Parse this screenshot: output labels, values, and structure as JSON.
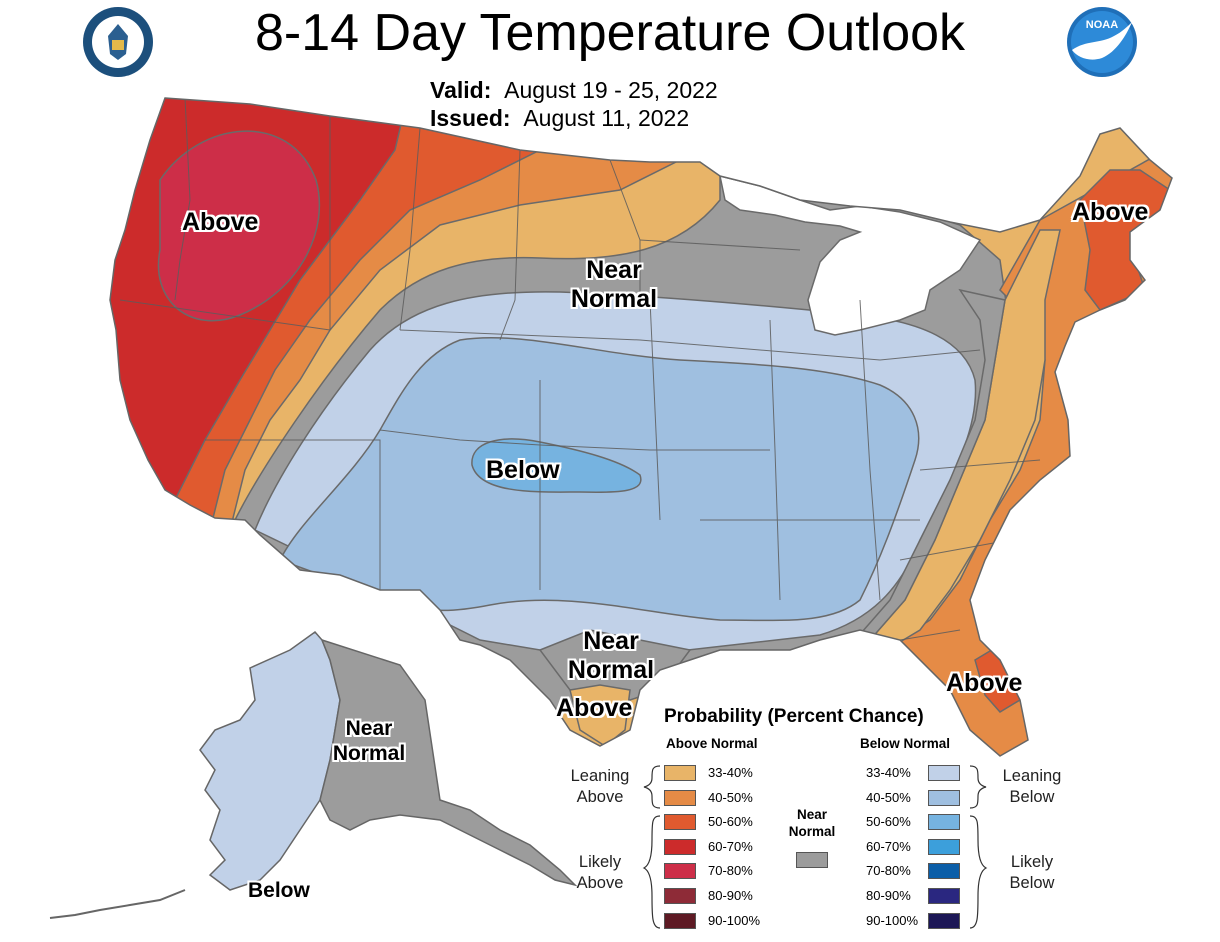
{
  "header": {
    "title": "8-14 Day Temperature Outlook",
    "valid_label": "Valid:",
    "valid_value": "August 19 - 25, 2022",
    "issued_label": "Issued:",
    "issued_value": "August 11, 2022"
  },
  "logos": {
    "left_seal_name": "department-of-commerce-seal",
    "right_logo_name": "noaa-logo",
    "noaa_text": "NOAA"
  },
  "map_labels": {
    "northwest": "Above",
    "northeast": "Above",
    "north_central_line1": "Near",
    "north_central_line2": "Normal",
    "central": "Below",
    "south_texas_line1": "Near",
    "south_texas_line2": "Normal",
    "south_texas_tip": "Above",
    "florida": "Above",
    "alaska_line1": "Near",
    "alaska_line2": "Normal",
    "alaska_southwest": "Below"
  },
  "colors": {
    "above_33_40": "#e8b468",
    "above_40_50": "#e58b46",
    "above_50_60": "#e05a2f",
    "above_60_70": "#cc2b2b",
    "above_70_80": "#cd2e48",
    "above_80_90": "#8e2b37",
    "above_90_100": "#5e1a24",
    "near_normal": "#9c9c9c",
    "below_33_40": "#c1d1e8",
    "below_40_50": "#9fbfe0",
    "below_50_60": "#76b3e0",
    "below_60_70": "#3c9fdb",
    "below_70_80": "#0b5ea8",
    "below_80_90": "#2a2780",
    "below_90_100": "#1c1756",
    "boundary": "#6a6a6a",
    "great_lakes": "#ffffff"
  },
  "legend": {
    "title": "Probability (Percent Chance)",
    "above_header": "Above Normal",
    "below_header": "Below Normal",
    "near_line1": "Near",
    "near_line2": "Normal",
    "leaning_above": [
      "Leaning",
      "Above"
    ],
    "likely_above": [
      "Likely",
      "Above"
    ],
    "leaning_below": [
      "Leaning",
      "Below"
    ],
    "likely_below": [
      "Likely",
      "Below"
    ],
    "above_rows": [
      {
        "label": "33-40%",
        "color": "#e8b468"
      },
      {
        "label": "40-50%",
        "color": "#e58b46"
      },
      {
        "label": "50-60%",
        "color": "#e05a2f"
      },
      {
        "label": "60-70%",
        "color": "#cc2b2b"
      },
      {
        "label": "70-80%",
        "color": "#cd2e48"
      },
      {
        "label": "80-90%",
        "color": "#8e2b37"
      },
      {
        "label": "90-100%",
        "color": "#5e1a24"
      }
    ],
    "below_rows": [
      {
        "label": "33-40%",
        "color": "#c1d1e8"
      },
      {
        "label": "40-50%",
        "color": "#9fbfe0"
      },
      {
        "label": "50-60%",
        "color": "#76b3e0"
      },
      {
        "label": "60-70%",
        "color": "#3c9fdb"
      },
      {
        "label": "70-80%",
        "color": "#0b5ea8"
      },
      {
        "label": "80-90%",
        "color": "#2a2780"
      },
      {
        "label": "90-100%",
        "color": "#1c1756"
      }
    ]
  }
}
